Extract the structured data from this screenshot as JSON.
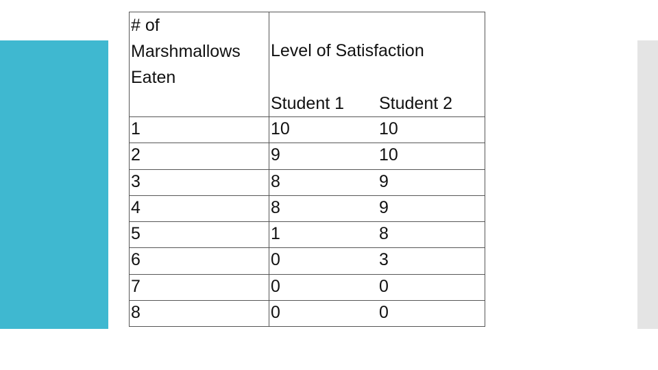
{
  "table": {
    "header": {
      "quantity": "# of Marshmallows Eaten",
      "group": "Level of Satisfaction",
      "columns": [
        "Student 1",
        "Student 2"
      ]
    },
    "rows": [
      [
        1,
        10,
        10
      ],
      [
        2,
        9,
        10
      ],
      [
        3,
        8,
        9
      ],
      [
        4,
        8,
        9
      ],
      [
        5,
        1,
        8
      ],
      [
        6,
        0,
        3
      ],
      [
        7,
        0,
        0
      ],
      [
        8,
        0,
        0
      ]
    ]
  }
}
